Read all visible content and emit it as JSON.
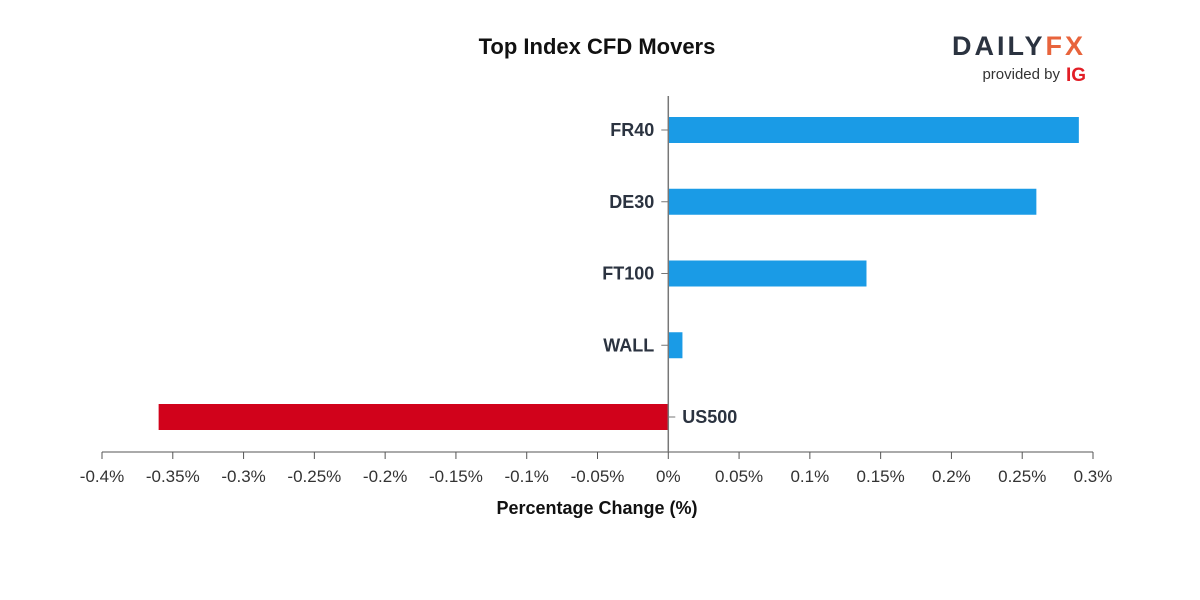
{
  "chart_data": {
    "type": "bar",
    "orientation": "horizontal",
    "title": "Top Index CFD Movers",
    "xlabel": "Percentage Change (%)",
    "ylabel": "",
    "categories": [
      "FR40",
      "DE30",
      "FT100",
      "WALL",
      "US500"
    ],
    "values": [
      0.29,
      0.26,
      0.14,
      0.01,
      -0.36
    ],
    "xlim": [
      -0.4,
      0.3
    ],
    "xticks": [
      -0.4,
      -0.35,
      -0.3,
      -0.25,
      -0.2,
      -0.15,
      -0.1,
      -0.05,
      0,
      0.05,
      0.1,
      0.15,
      0.2,
      0.25,
      0.3
    ],
    "xtick_labels": [
      "-0.4%",
      "-0.35%",
      "-0.3%",
      "-0.25%",
      "-0.2%",
      "-0.15%",
      "-0.1%",
      "-0.05%",
      "0%",
      "0.05%",
      "0.1%",
      "0.15%",
      "0.2%",
      "0.25%",
      "0.3%"
    ],
    "grid": false,
    "legend": "none",
    "colors": {
      "positive": "#1a9be6",
      "negative": "#d1021b"
    }
  },
  "branding": {
    "logo_daily": "DAILY",
    "logo_fx": "FX",
    "provided_by": "provided by",
    "ig": "IG",
    "colors": {
      "daily": "#2b3340",
      "fx": "#e8643c",
      "ig": "#e21e26"
    }
  }
}
